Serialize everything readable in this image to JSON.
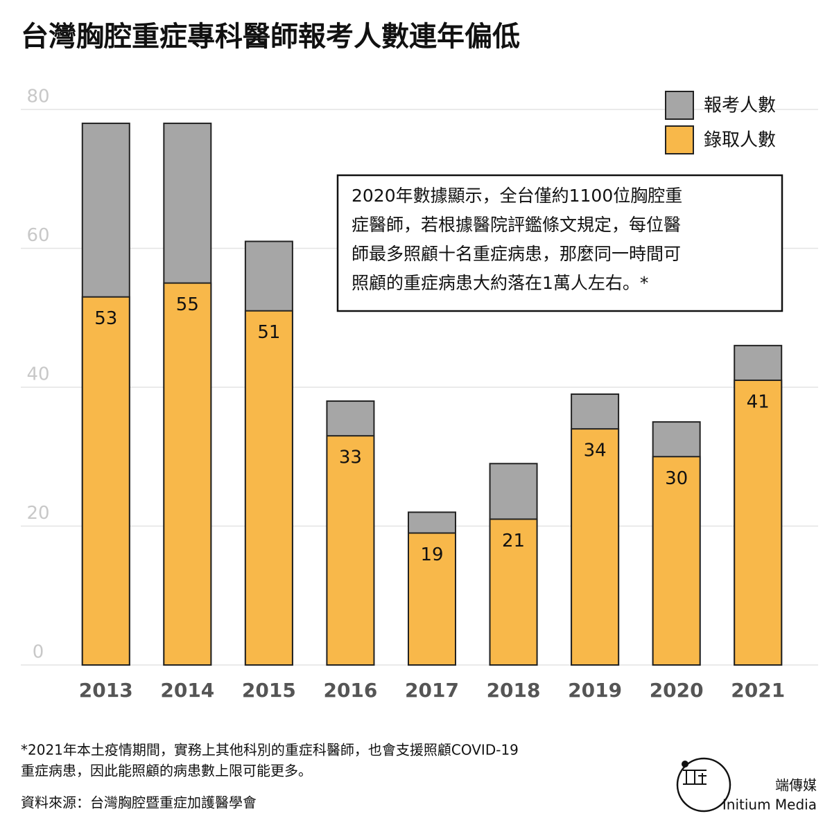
{
  "chart_data": {
    "type": "bar",
    "title": "台灣胸腔重症專科醫師報考人數連年偏低",
    "categories": [
      "2013",
      "2014",
      "2015",
      "2016",
      "2017",
      "2018",
      "2019",
      "2020",
      "2021"
    ],
    "series": [
      {
        "name": "報考人數",
        "color": "#a6a6a6",
        "values": [
          78,
          78,
          61,
          38,
          22,
          29,
          39,
          35,
          46
        ]
      },
      {
        "name": "錄取人數",
        "color": "#f8b84a",
        "values": [
          53,
          55,
          51,
          33,
          19,
          21,
          34,
          30,
          41
        ]
      }
    ],
    "ylim": [
      0,
      80
    ],
    "yticks": [
      0,
      20,
      40,
      60,
      80
    ],
    "grid": true,
    "annotation": [
      "2020年數據顯示，全台僅約1100位胸腔重",
      "症醫師，若根據醫院評鑑條文規定，每位醫",
      "師最多照顧十名重症病患，那麼同一時間可",
      "照顧的重症病患大約落在1萬人左右。*"
    ],
    "footnote": [
      "*2021年本土疫情期間，實務上其他科別的重症科醫師，也會支援照顧COVID-19",
      "重症病患，因此能照顧的病患數上限可能更多。"
    ],
    "source": "資料來源：台灣胸腔暨重症加護醫學會",
    "brand": [
      "端傳媒",
      "Initium Media"
    ]
  }
}
